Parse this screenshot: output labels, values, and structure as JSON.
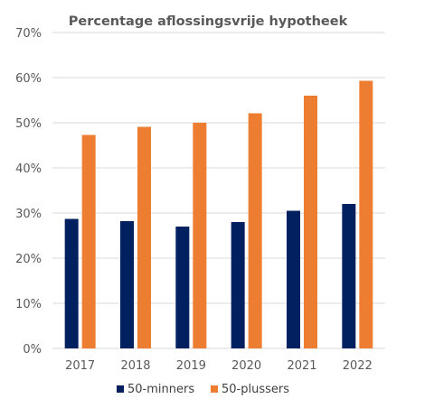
{
  "chart_data": {
    "type": "bar",
    "title": "Percentage aflossingsvrije hypotheek",
    "xlabel": "",
    "ylabel": "",
    "categories": [
      "2017",
      "2018",
      "2019",
      "2020",
      "2021",
      "2022"
    ],
    "series": [
      {
        "name": "50-minners",
        "color": "#002060",
        "values": [
          28.7,
          28.2,
          27.0,
          28.0,
          30.5,
          32.0
        ]
      },
      {
        "name": "50-plussers",
        "color": "#ed7d31",
        "values": [
          47.3,
          49.1,
          50.0,
          52.1,
          56.0,
          59.3
        ]
      }
    ],
    "ylim": [
      0,
      70
    ],
    "yticks": [
      0,
      10,
      20,
      30,
      40,
      50,
      60,
      70
    ],
    "ytick_format": "percent",
    "grid": true,
    "legend_position": "bottom"
  }
}
